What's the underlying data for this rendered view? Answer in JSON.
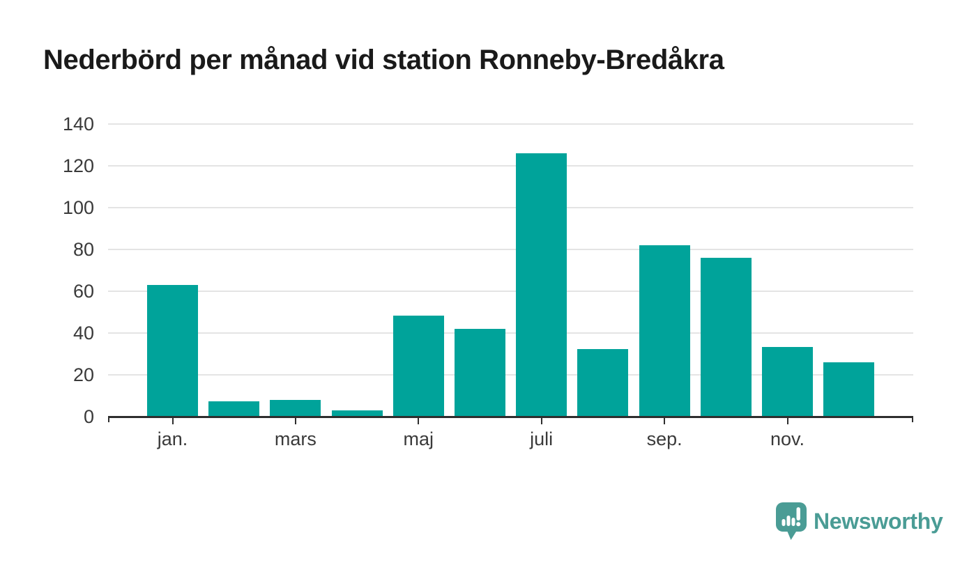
{
  "chart_data": {
    "type": "bar",
    "title": "Nederbörd per månad vid station Ronneby-Bredåkra",
    "values": [
      63,
      7.5,
      8,
      3,
      48.5,
      42,
      126,
      32.5,
      82,
      76,
      33.5,
      26
    ],
    "yticks": [
      0,
      20,
      40,
      60,
      80,
      100,
      120,
      140
    ],
    "ylim": [
      0,
      140
    ],
    "xticks": [
      {
        "index": 0,
        "label": "jan."
      },
      {
        "index": 2,
        "label": "mars"
      },
      {
        "index": 4,
        "label": "maj"
      },
      {
        "index": 6,
        "label": "juli"
      },
      {
        "index": 8,
        "label": "sep."
      },
      {
        "index": 10,
        "label": "nov."
      }
    ],
    "xlabel": "",
    "ylabel": "",
    "grid": "horizontal",
    "legend": "none",
    "bar_color": "#00a39a",
    "gridline_color": "#e4e4e4",
    "axis_color": "#2e2e2e",
    "label_color": "#3a3a3a"
  },
  "brand": {
    "name": "Newsworthy",
    "color": "#4a9c95",
    "icon": "newsworthy-speech-bubble-chart-icon"
  }
}
